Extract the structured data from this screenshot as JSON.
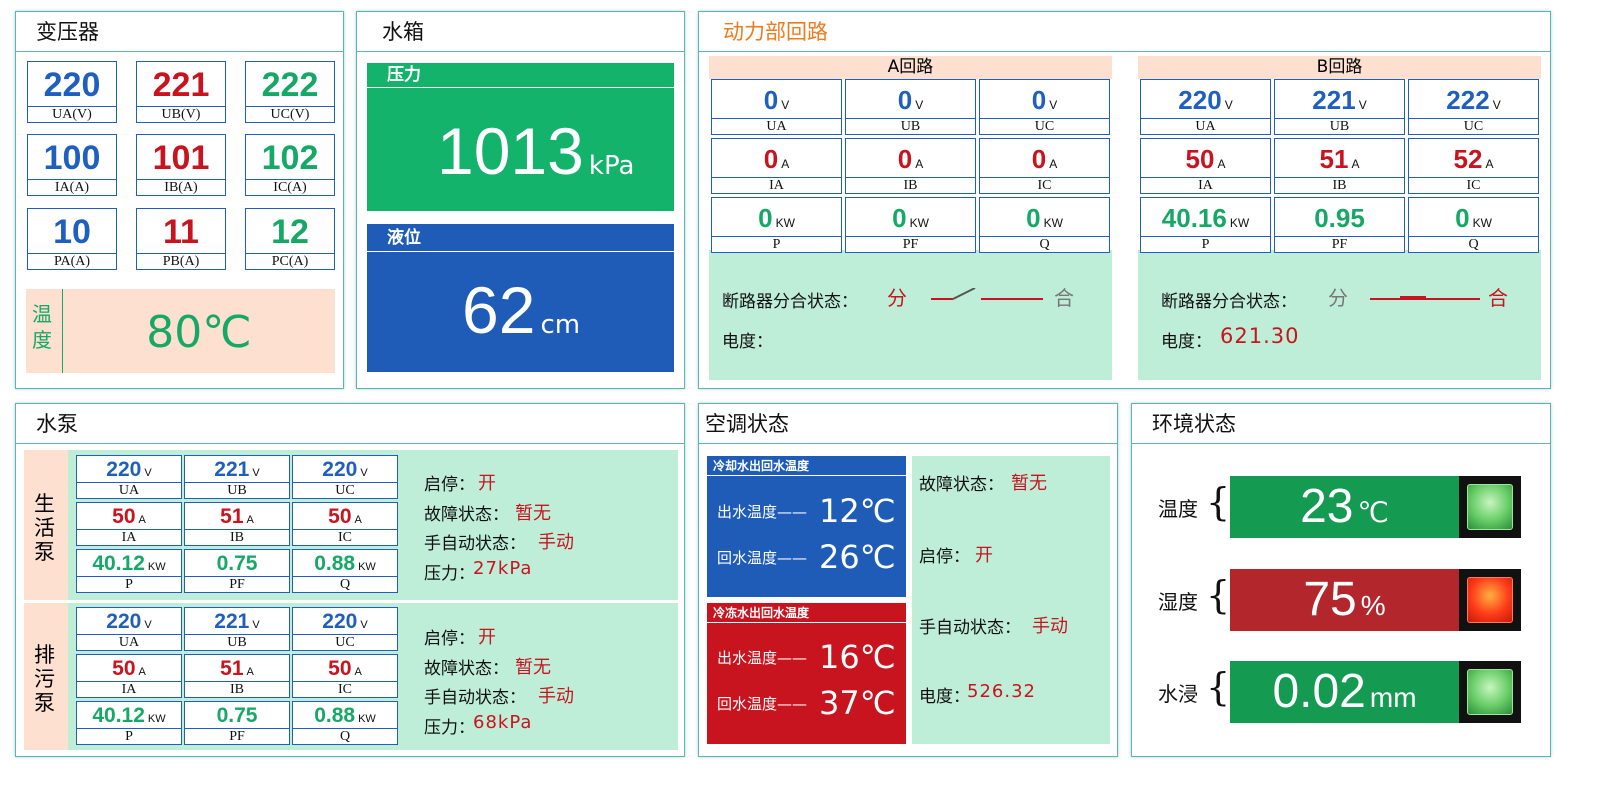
{
  "transformer": {
    "title": "变压器",
    "cells": [
      {
        "value": "220",
        "label": "UA(V)",
        "color": "blue"
      },
      {
        "value": "221",
        "label": "UB(V)",
        "color": "red"
      },
      {
        "value": "222",
        "label": "UC(V)",
        "color": "green"
      },
      {
        "value": "100",
        "label": "IA(A)",
        "color": "blue"
      },
      {
        "value": "101",
        "label": "IB(A)",
        "color": "red"
      },
      {
        "value": "102",
        "label": "IC(A)",
        "color": "green"
      },
      {
        "value": "10",
        "label": "PA(A)",
        "color": "blue"
      },
      {
        "value": "11",
        "label": "PB(A)",
        "color": "red"
      },
      {
        "value": "12",
        "label": "PC(A)",
        "color": "green"
      }
    ],
    "temp_label": "温度",
    "temp_value": "80℃"
  },
  "tank": {
    "title": "水箱",
    "pressure_label": "压力",
    "pressure_value": "1013",
    "pressure_unit": "kPa",
    "level_label": "液位",
    "level_value": "62",
    "level_unit": "cm"
  },
  "power": {
    "title": "动力部回路",
    "a": {
      "title": "A回路",
      "cells": [
        {
          "value": "0",
          "unit": "V",
          "label": "UA",
          "color": "blue"
        },
        {
          "value": "0",
          "unit": "V",
          "label": "UB",
          "color": "blue"
        },
        {
          "value": "0",
          "unit": "V",
          "label": "UC",
          "color": "blue"
        },
        {
          "value": "0",
          "unit": "A",
          "label": "IA",
          "color": "red"
        },
        {
          "value": "0",
          "unit": "A",
          "label": "IB",
          "color": "red"
        },
        {
          "value": "0",
          "unit": "A",
          "label": "IC",
          "color": "red"
        },
        {
          "value": "0",
          "unit": "KW",
          "label": "P",
          "color": "green"
        },
        {
          "value": "0",
          "unit": "KW",
          "label": "PF",
          "color": "green"
        },
        {
          "value": "0",
          "unit": "KW",
          "label": "Q",
          "color": "green"
        }
      ],
      "breaker_label": "断路器分合状态：",
      "open": "分",
      "close": "合",
      "energy_label": "电度：",
      "energy_value": ""
    },
    "b": {
      "title": "B回路",
      "cells": [
        {
          "value": "220",
          "unit": "V",
          "label": "UA",
          "color": "blue"
        },
        {
          "value": "221",
          "unit": "V",
          "label": "UB",
          "color": "blue"
        },
        {
          "value": "222",
          "unit": "V",
          "label": "UC",
          "color": "blue"
        },
        {
          "value": "50",
          "unit": "A",
          "label": "IA",
          "color": "red"
        },
        {
          "value": "51",
          "unit": "A",
          "label": "IB",
          "color": "red"
        },
        {
          "value": "52",
          "unit": "A",
          "label": "IC",
          "color": "red"
        },
        {
          "value": "40.16",
          "unit": "KW",
          "label": "P",
          "color": "green"
        },
        {
          "value": "0.95",
          "unit": "",
          "label": "PF",
          "color": "green"
        },
        {
          "value": "0",
          "unit": "KW",
          "label": "Q",
          "color": "green"
        }
      ],
      "breaker_label": "断路器分合状态：",
      "open": "分",
      "close": "合",
      "energy_label": "电度：",
      "energy_value": "621.30"
    }
  },
  "pump": {
    "title": "水泵",
    "groups": [
      {
        "name": "生活泵",
        "cells": [
          {
            "value": "220",
            "unit": "V",
            "label": "UA",
            "color": "blue"
          },
          {
            "value": "221",
            "unit": "V",
            "label": "UB",
            "color": "blue"
          },
          {
            "value": "220",
            "unit": "V",
            "label": "UC",
            "color": "blue"
          },
          {
            "value": "50",
            "unit": "A",
            "label": "IA",
            "color": "red"
          },
          {
            "value": "51",
            "unit": "A",
            "label": "IB",
            "color": "red"
          },
          {
            "value": "50",
            "unit": "A",
            "label": "IC",
            "color": "red"
          },
          {
            "value": "40.12",
            "unit": "KW",
            "label": "P",
            "color": "green"
          },
          {
            "value": "0.75",
            "unit": "",
            "label": "PF",
            "color": "green"
          },
          {
            "value": "0.88",
            "unit": "KW",
            "label": "Q",
            "color": "green"
          }
        ],
        "run_label": "启停：",
        "run_value": "开",
        "fault_label": "故障状态：",
        "fault_value": "暂无",
        "mode_label": "手自动状态：",
        "mode_value": "手动",
        "pressure_label": "压力：",
        "pressure_value": "27kPa"
      },
      {
        "name": "排污泵",
        "cells": [
          {
            "value": "220",
            "unit": "V",
            "label": "UA",
            "color": "blue"
          },
          {
            "value": "221",
            "unit": "V",
            "label": "UB",
            "color": "blue"
          },
          {
            "value": "220",
            "unit": "V",
            "label": "UC",
            "color": "blue"
          },
          {
            "value": "50",
            "unit": "A",
            "label": "IA",
            "color": "red"
          },
          {
            "value": "51",
            "unit": "A",
            "label": "IB",
            "color": "red"
          },
          {
            "value": "50",
            "unit": "A",
            "label": "IC",
            "color": "red"
          },
          {
            "value": "40.12",
            "unit": "KW",
            "label": "P",
            "color": "green"
          },
          {
            "value": "0.75",
            "unit": "",
            "label": "PF",
            "color": "green"
          },
          {
            "value": "0.88",
            "unit": "KW",
            "label": "Q",
            "color": "green"
          }
        ],
        "run_label": "启停：",
        "run_value": "开",
        "fault_label": "故障状态：",
        "fault_value": "暂无",
        "mode_label": "手自动状态：",
        "mode_value": "手动",
        "pressure_label": "压力：",
        "pressure_value": "68kPa"
      }
    ]
  },
  "ac": {
    "title": "空调状态",
    "cooling": {
      "title": "冷却水出回水温度",
      "out_label": "出水温度——",
      "out_value": "12℃",
      "back_label": "回水温度——",
      "back_value": "26℃"
    },
    "chilled": {
      "title": "冷冻水出回水温度",
      "out_label": "出水温度——",
      "out_value": "16℃",
      "back_label": "回水温度——",
      "back_value": "37℃"
    },
    "fault_label": "故障状态：",
    "fault_value": "暂无",
    "run_label": "启停：",
    "run_value": "开",
    "mode_label": "手自动状态：",
    "mode_value": "手动",
    "energy_label": "电度：",
    "energy_value": "526.32"
  },
  "env": {
    "title": "环境状态",
    "rows": [
      {
        "label": "温度",
        "value": "23",
        "unit": "℃",
        "bar_color": "#159a52",
        "lamp": "green"
      },
      {
        "label": "湿度",
        "value": "75",
        "unit": "%",
        "bar_color": "#b3272c",
        "lamp": "red"
      },
      {
        "label": "水浸",
        "value": "0.02",
        "unit": "mm",
        "bar_color": "#159a52",
        "lamp": "green"
      }
    ]
  },
  "colors": {
    "blue": "#1f5fbf",
    "red": "#c8141e",
    "green": "#16a866",
    "panel_green": "#bfeed8",
    "panel_peach": "#fde0d0"
  }
}
